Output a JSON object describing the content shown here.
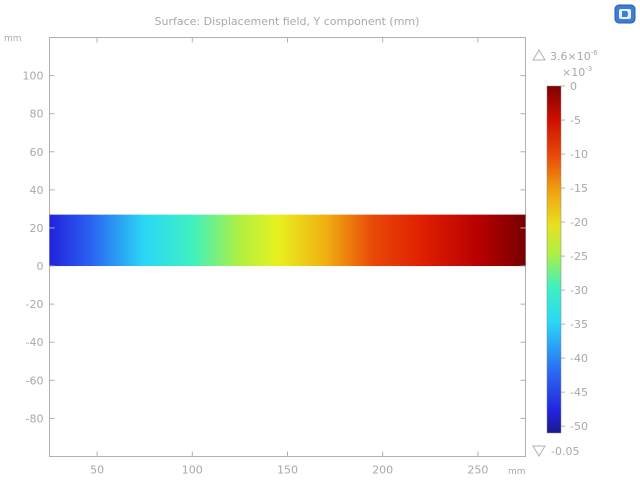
{
  "app": {
    "logo_icon": "comsol-logo-icon"
  },
  "chart_data": {
    "type": "heatmap",
    "title": "Surface: Displacement field, Y component (mm)",
    "x_unit": "mm",
    "y_unit": "mm",
    "x_ticks": [
      50,
      100,
      150,
      200,
      250
    ],
    "y_ticks": [
      100,
      80,
      60,
      40,
      20,
      0,
      -20,
      -40,
      -60,
      -80
    ],
    "xlim": [
      25,
      275
    ],
    "ylim": [
      -100,
      120
    ],
    "domain": {
      "x": [
        25,
        275
      ],
      "y": [
        0,
        27
      ]
    },
    "field": {
      "description_axis": "x",
      "x": [
        25,
        275
      ],
      "values": [
        -0.05,
        3.6e-06
      ]
    },
    "colormap": "rainbow",
    "colorbar": {
      "max_label": "3.6×10",
      "max_exponent": "-6",
      "scale_label": "×10",
      "scale_exponent": "-3",
      "min_label": "-0.05",
      "tick_labels": [
        "0",
        "-5",
        "-10",
        "-15",
        "-20",
        "-25",
        "-30",
        "-35",
        "-40",
        "-45",
        "-50"
      ],
      "tick_values": [
        0,
        -5,
        -10,
        -15,
        -20,
        -25,
        -30,
        -35,
        -40,
        -45,
        -50
      ],
      "range_scaled": [
        -51,
        0.0036
      ]
    },
    "grid": false,
    "legend_position": "right"
  }
}
